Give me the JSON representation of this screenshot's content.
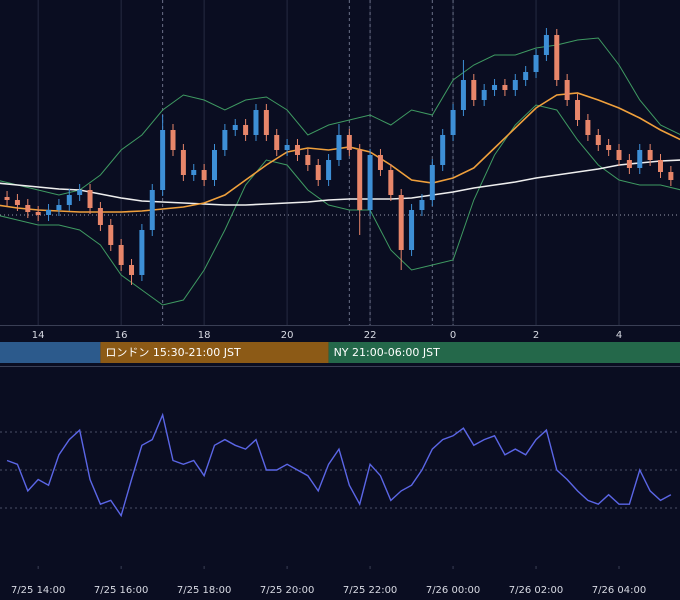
{
  "chart_data": [
    {
      "type": "candlestick",
      "xlim": [
        13.08,
        29.47
      ],
      "ylim": [
        0,
        325
      ],
      "xticks": [
        14,
        16,
        18,
        20,
        22,
        {
          "value": 24,
          "label": "0"
        },
        {
          "value": 26,
          "label": "2"
        },
        {
          "value": 28,
          "label": "4"
        }
      ],
      "grid": true,
      "up_color": "#3d8fd6",
      "down_color": "#e8866a",
      "x": [
        13.25,
        13.5,
        13.75,
        14,
        14.25,
        14.5,
        14.75,
        15,
        15.25,
        15.5,
        15.75,
        16,
        16.25,
        16.5,
        16.75,
        17,
        17.25,
        17.5,
        17.75,
        18,
        18.25,
        18.5,
        18.75,
        19,
        19.25,
        19.5,
        19.75,
        20,
        20.25,
        20.5,
        20.75,
        21,
        21.25,
        21.5,
        21.75,
        22,
        22.25,
        22.5,
        22.75,
        23,
        23.25,
        23.5,
        23.75,
        24,
        24.25,
        24.5,
        24.75,
        25,
        25.25,
        25.5,
        25.75,
        26,
        26.25,
        26.5,
        26.75,
        27,
        27.25,
        27.5,
        27.75,
        28,
        28.25,
        28.5,
        28.75,
        29,
        29.25
      ],
      "open": [
        128,
        125,
        120,
        113,
        110,
        115,
        120,
        130,
        135,
        117,
        100,
        80,
        60,
        50,
        95,
        135,
        195,
        175,
        150,
        155,
        145,
        175,
        195,
        200,
        190,
        215,
        190,
        175,
        180,
        170,
        160,
        145,
        165,
        190,
        175,
        115,
        170,
        155,
        130,
        75,
        115,
        125,
        160,
        190,
        215,
        245,
        225,
        235,
        240,
        235,
        245,
        253,
        270,
        290,
        245,
        225,
        205,
        190,
        180,
        175,
        165,
        157,
        175,
        165,
        153
      ],
      "high": [
        134,
        131,
        126,
        119,
        121,
        126,
        136,
        141,
        141,
        123,
        106,
        86,
        66,
        101,
        141,
        210,
        201,
        181,
        161,
        161,
        181,
        201,
        206,
        206,
        221,
        221,
        196,
        186,
        186,
        176,
        166,
        171,
        201,
        196,
        181,
        176,
        176,
        161,
        136,
        121,
        131,
        166,
        196,
        221,
        265,
        251,
        241,
        246,
        246,
        251,
        259,
        276,
        297,
        296,
        251,
        231,
        211,
        196,
        186,
        181,
        171,
        181,
        181,
        171,
        159
      ],
      "low": [
        119,
        114,
        107,
        104,
        104,
        109,
        114,
        124,
        111,
        94,
        74,
        54,
        40,
        44,
        89,
        129,
        169,
        144,
        144,
        139,
        139,
        169,
        189,
        184,
        184,
        184,
        169,
        169,
        164,
        154,
        139,
        139,
        159,
        169,
        90,
        109,
        149,
        124,
        55,
        69,
        109,
        119,
        154,
        184,
        209,
        219,
        219,
        229,
        229,
        229,
        239,
        247,
        264,
        239,
        219,
        199,
        184,
        174,
        169,
        159,
        151,
        151,
        159,
        147,
        139
      ],
      "close": [
        125,
        120,
        113,
        110,
        115,
        120,
        130,
        135,
        117,
        100,
        80,
        60,
        50,
        95,
        135,
        195,
        175,
        150,
        155,
        145,
        175,
        195,
        200,
        190,
        215,
        190,
        175,
        180,
        170,
        160,
        145,
        165,
        190,
        175,
        115,
        170,
        155,
        130,
        75,
        115,
        125,
        160,
        190,
        215,
        245,
        225,
        235,
        240,
        235,
        245,
        253,
        270,
        290,
        245,
        225,
        205,
        190,
        180,
        175,
        165,
        157,
        175,
        165,
        153,
        145
      ],
      "overlay_x": [
        13,
        13.5,
        14,
        14.5,
        15,
        15.5,
        16,
        16.5,
        17,
        17.5,
        18,
        18.5,
        19,
        19.5,
        20,
        20.5,
        21,
        21.5,
        22,
        22.5,
        23,
        23.5,
        24,
        24.5,
        25,
        25.5,
        26,
        26.5,
        27,
        27.5,
        28,
        28.5,
        29,
        29.5
      ],
      "overlays": [
        {
          "color": "#3f9a62",
          "values": [
            145,
            140,
            135,
            130,
            135,
            150,
            175,
            190,
            215,
            230,
            225,
            215,
            225,
            228,
            215,
            190,
            200,
            205,
            210,
            200,
            215,
            210,
            245,
            260,
            270,
            270,
            277,
            280,
            285,
            287,
            260,
            225,
            200,
            190
          ]
        },
        {
          "color": "#3f9a62",
          "values": [
            110,
            105,
            100,
            100,
            95,
            80,
            50,
            35,
            20,
            25,
            55,
            95,
            140,
            165,
            160,
            135,
            120,
            115,
            115,
            75,
            55,
            60,
            65,
            125,
            170,
            200,
            220,
            215,
            185,
            160,
            145,
            140,
            140,
            135
          ]
        },
        {
          "color": "#eeeeee",
          "values": [
            142,
            140,
            138,
            136,
            135,
            131,
            127,
            124,
            123,
            122,
            121,
            120,
            120,
            121,
            122,
            123,
            125,
            126,
            126,
            126,
            127,
            130,
            133,
            137,
            140,
            143,
            147,
            150,
            153,
            156,
            160,
            162,
            164,
            165
          ]
        },
        {
          "color": "#f0a03c",
          "values": [
            120,
            117,
            115,
            114,
            113,
            113,
            113,
            114,
            116,
            118,
            122,
            130,
            145,
            160,
            173,
            177,
            175,
            178,
            173,
            160,
            145,
            142,
            147,
            157,
            177,
            197,
            217,
            230,
            232,
            225,
            217,
            207,
            195,
            185
          ]
        }
      ],
      "reference_line": 110,
      "vlines": [
        17,
        21.5,
        22,
        23.5,
        24
      ],
      "sessions": [
        {
          "name": null,
          "start": 9,
          "end": 15.5,
          "color": "#2c5a8c"
        },
        {
          "name": "ロンドン 15:30-21:00 JST",
          "start": 15.5,
          "end": 21,
          "color": "#8c5a16"
        },
        {
          "name": "NY 21:00-06:00 JST",
          "start": 21,
          "end": 30,
          "color": "#24684a"
        }
      ]
    },
    {
      "type": "line",
      "xlim": [
        13.08,
        29.47
      ],
      "ylim": [
        0,
        100
      ],
      "xticks": [
        {
          "value": 14,
          "label": "7/25 14:00"
        },
        {
          "value": 16,
          "label": "7/25 16:00"
        },
        {
          "value": 18,
          "label": "7/25 18:00"
        },
        {
          "value": 20,
          "label": "7/25 20:00"
        },
        {
          "value": 22,
          "label": "7/25 22:00"
        },
        {
          "value": 24,
          "label": "7/26 00:00"
        },
        {
          "value": 26,
          "label": "7/26 02:00"
        },
        {
          "value": 28,
          "label": "7/26 04:00"
        }
      ],
      "levels": [
        70,
        50,
        30
      ],
      "color": "#5b66e6",
      "x": [
        13.25,
        13.5,
        13.75,
        14,
        14.25,
        14.5,
        14.75,
        15,
        15.25,
        15.5,
        15.75,
        16,
        16.25,
        16.5,
        16.75,
        17,
        17.25,
        17.5,
        17.75,
        18,
        18.25,
        18.5,
        18.75,
        19,
        19.25,
        19.5,
        19.75,
        20,
        20.25,
        20.5,
        20.75,
        21,
        21.25,
        21.5,
        21.75,
        22,
        22.25,
        22.5,
        22.75,
        23,
        23.25,
        23.5,
        23.75,
        24,
        24.25,
        24.5,
        24.75,
        25,
        25.25,
        25.5,
        25.75,
        26,
        26.25,
        26.5,
        26.75,
        27,
        27.25,
        27.5,
        27.75,
        28,
        28.25,
        28.5,
        28.75,
        29,
        29.25
      ],
      "values": [
        55,
        53,
        39,
        45,
        42,
        58,
        66,
        71,
        45,
        32,
        34,
        26,
        45,
        63,
        66,
        79,
        55,
        53,
        55,
        47,
        63,
        66,
        63,
        61,
        66,
        50,
        50,
        53,
        50,
        47,
        39,
        53,
        61,
        42,
        32,
        53,
        47,
        34,
        39,
        42,
        50,
        61,
        66,
        68,
        72,
        63,
        66,
        68,
        58,
        61,
        58,
        66,
        71,
        50,
        45,
        39,
        34,
        32,
        37,
        32,
        32,
        50,
        39,
        34,
        37
      ]
    }
  ]
}
